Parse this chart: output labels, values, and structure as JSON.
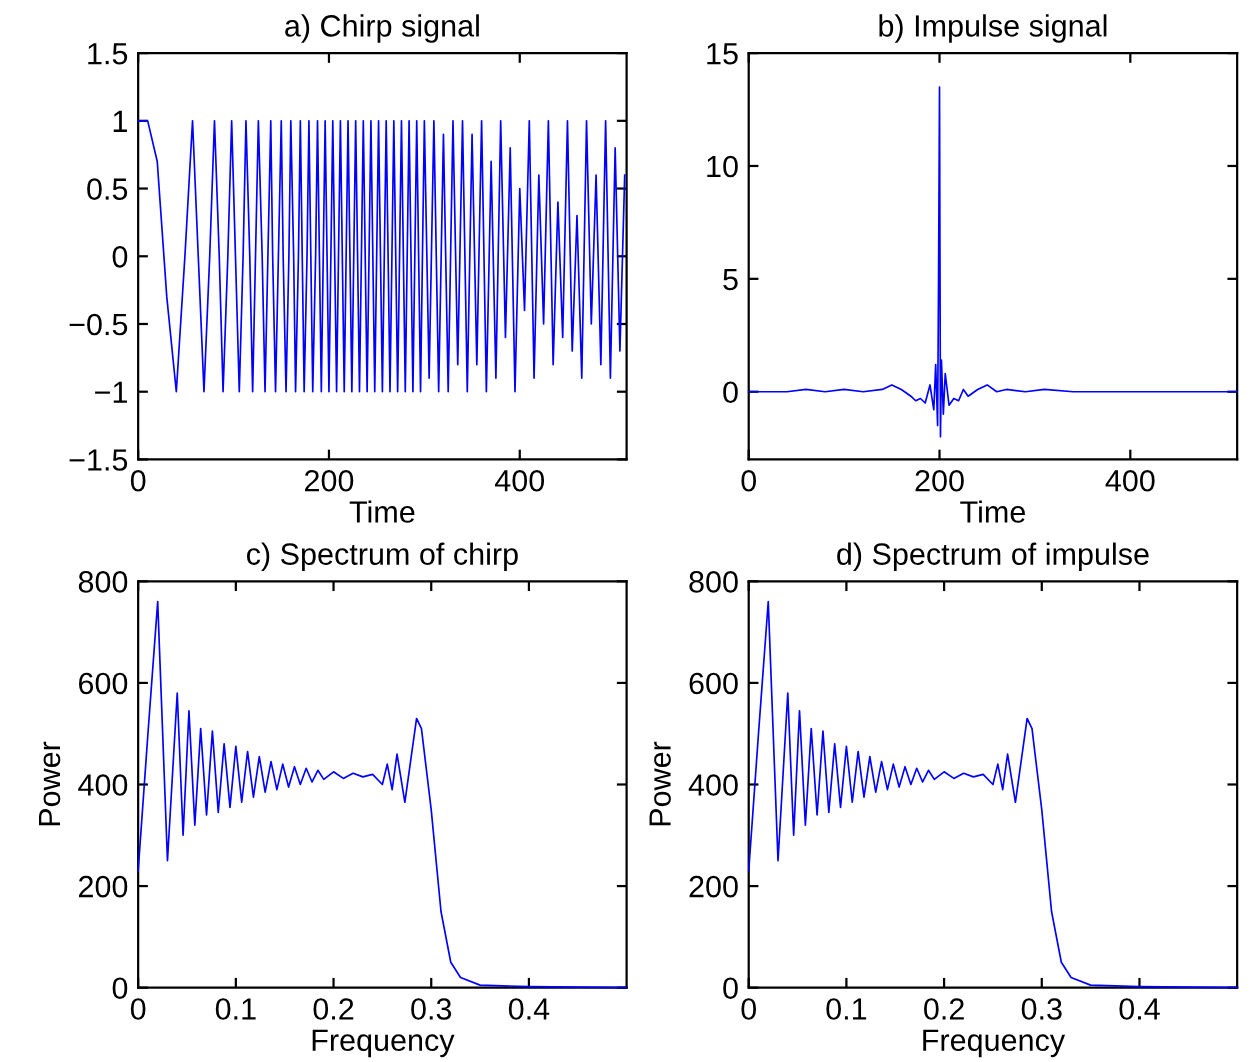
{
  "chart_data": [
    {
      "type": "line",
      "title": "a) Chirp signal",
      "xlabel": "Time",
      "xlim": [
        0,
        512
      ],
      "xticks": [
        0,
        200,
        400
      ],
      "ylim": [
        -1.5,
        1.5
      ],
      "yticks": [
        {
          "value": -1.5,
          "label": "−1.5"
        },
        {
          "value": -1,
          "label": "−1"
        },
        {
          "value": -0.5,
          "label": "−0.5"
        },
        0,
        0.5,
        1,
        1.5
      ],
      "grid": false,
      "line_style": "solid",
      "series": [
        {
          "color": "#0000ff",
          "x": [
            0,
            10,
            20,
            30,
            40,
            49,
            57,
            63,
            69,
            75,
            80,
            85,
            89,
            94,
            98,
            102,
            106,
            110,
            113,
            117,
            120,
            123,
            126,
            130,
            133,
            136,
            139,
            141,
            144,
            147,
            150,
            152,
            155,
            158,
            160,
            163,
            165,
            168,
            170,
            172,
            174,
            177,
            179,
            181,
            183,
            186,
            188,
            190,
            192,
            194,
            196,
            198,
            200,
            204,
            208,
            212,
            216,
            220,
            224,
            228,
            232,
            236,
            240,
            244,
            248,
            252,
            256,
            260,
            264,
            268,
            272,
            276,
            280,
            284,
            288,
            292,
            296,
            300,
            305,
            310,
            315,
            320,
            325,
            330,
            335,
            340,
            345,
            350,
            355,
            360,
            365,
            370,
            375,
            380,
            385,
            390,
            395,
            400,
            405,
            410,
            415,
            420,
            425,
            430,
            435,
            440,
            445,
            450,
            455,
            460,
            465,
            470,
            475,
            480,
            485,
            490,
            495,
            500,
            505,
            510
          ],
          "values": [
            1,
            1,
            0.7,
            -0.3,
            -1,
            0,
            1,
            0,
            -1,
            0,
            1,
            0,
            -1,
            0,
            1,
            0,
            -1,
            0,
            1,
            0,
            -1,
            0,
            1,
            0,
            -1,
            0,
            1,
            0,
            -1,
            0,
            1,
            0,
            -1,
            0,
            1,
            0,
            -1,
            0,
            1,
            0,
            -1,
            0,
            1,
            0,
            -1,
            0,
            1,
            0,
            -1,
            0,
            1,
            0,
            -1,
            1,
            -1,
            1,
            -1,
            1,
            -1,
            1,
            -1,
            1,
            -1,
            1,
            -1,
            1,
            -1,
            1,
            -1,
            1,
            -1,
            1,
            -1,
            1,
            -1,
            1,
            -1,
            1,
            -0.9,
            1,
            -1,
            0.9,
            -1,
            1,
            -0.8,
            1,
            -1,
            0.9,
            -0.8,
            1,
            -1,
            0.7,
            -0.9,
            1,
            -0.6,
            0.8,
            -1,
            0.5,
            -0.4,
            1,
            -0.9,
            0.6,
            -0.5,
            1,
            -0.8,
            0.4,
            -0.6,
            1,
            -0.7,
            0.3,
            -0.9,
            1,
            -0.5,
            0.6,
            -0.8,
            1,
            -0.9,
            0.8,
            -0.7,
            0.6
          ]
        }
      ]
    },
    {
      "type": "line",
      "title": "b) Impulse signal",
      "xlabel": "Time",
      "xlim": [
        0,
        512
      ],
      "xticks": [
        0,
        200,
        400
      ],
      "ylim": [
        -3,
        15
      ],
      "yticks": [
        0,
        5,
        10,
        15
      ],
      "grid": false,
      "line_style": "solid",
      "series": [
        {
          "color": "#0000ff",
          "x": [
            0,
            20,
            40,
            60,
            80,
            100,
            120,
            140,
            150,
            160,
            170,
            175,
            180,
            185,
            190,
            194,
            196,
            198,
            199,
            200,
            201,
            202,
            204,
            206,
            210,
            215,
            220,
            225,
            230,
            240,
            250,
            260,
            270,
            290,
            310,
            340,
            380,
            420,
            460,
            500,
            512
          ],
          "values": [
            0,
            0,
            0,
            0.1,
            0,
            0.1,
            0,
            0.1,
            0.3,
            0.1,
            -0.2,
            -0.4,
            -0.3,
            -0.5,
            0.3,
            -0.8,
            1.2,
            -1.5,
            5,
            13.5,
            -2,
            1.4,
            -1,
            0.8,
            -0.6,
            -0.3,
            -0.4,
            0.1,
            -0.2,
            0.1,
            0.3,
            0,
            0.1,
            0,
            0.1,
            0,
            0,
            0,
            0,
            0,
            0
          ]
        }
      ]
    },
    {
      "type": "line",
      "title": "c) Spectrum of chirp",
      "xlabel": "Frequency",
      "ylabel": "Power",
      "xlim": [
        0,
        0.5
      ],
      "xticks": [
        0,
        0.1,
        0.2,
        0.3,
        0.4
      ],
      "ylim": [
        0,
        800
      ],
      "yticks": [
        0,
        200,
        400,
        600,
        800
      ],
      "grid": false,
      "line_style": "solid",
      "series": [
        {
          "color": "#0000ff",
          "x": [
            0,
            0.01,
            0.02,
            0.03,
            0.04,
            0.046,
            0.052,
            0.058,
            0.064,
            0.07,
            0.076,
            0.082,
            0.088,
            0.094,
            0.1,
            0.106,
            0.112,
            0.118,
            0.124,
            0.13,
            0.136,
            0.142,
            0.148,
            0.154,
            0.16,
            0.166,
            0.172,
            0.178,
            0.184,
            0.19,
            0.2,
            0.21,
            0.22,
            0.23,
            0.24,
            0.25,
            0.255,
            0.26,
            0.265,
            0.273,
            0.285,
            0.29,
            0.3,
            0.31,
            0.32,
            0.33,
            0.35,
            0.4,
            0.5
          ],
          "values": [
            230,
            500,
            760,
            250,
            580,
            300,
            545,
            320,
            510,
            340,
            505,
            345,
            480,
            355,
            475,
            365,
            465,
            375,
            455,
            385,
            445,
            390,
            440,
            395,
            435,
            400,
            432,
            405,
            428,
            410,
            425,
            412,
            422,
            415,
            420,
            400,
            440,
            390,
            460,
            365,
            530,
            510,
            350,
            150,
            50,
            20,
            5,
            2,
            0
          ]
        }
      ]
    },
    {
      "type": "line",
      "title": "d) Spectrum of impulse",
      "xlabel": "Frequency",
      "ylabel": "Power",
      "xlim": [
        0,
        0.5
      ],
      "xticks": [
        0,
        0.1,
        0.2,
        0.3,
        0.4
      ],
      "ylim": [
        0,
        800
      ],
      "yticks": [
        0,
        200,
        400,
        600,
        800
      ],
      "grid": false,
      "line_style": "solid",
      "series": [
        {
          "color": "#0000ff",
          "x": [
            0,
            0.01,
            0.02,
            0.03,
            0.04,
            0.046,
            0.052,
            0.058,
            0.064,
            0.07,
            0.076,
            0.082,
            0.088,
            0.094,
            0.1,
            0.106,
            0.112,
            0.118,
            0.124,
            0.13,
            0.136,
            0.142,
            0.148,
            0.154,
            0.16,
            0.166,
            0.172,
            0.178,
            0.184,
            0.19,
            0.2,
            0.21,
            0.22,
            0.23,
            0.24,
            0.25,
            0.255,
            0.26,
            0.265,
            0.273,
            0.285,
            0.29,
            0.3,
            0.31,
            0.32,
            0.33,
            0.35,
            0.4,
            0.5
          ],
          "values": [
            230,
            500,
            760,
            250,
            580,
            300,
            545,
            320,
            510,
            340,
            505,
            345,
            480,
            355,
            475,
            365,
            465,
            375,
            455,
            385,
            445,
            390,
            440,
            395,
            435,
            400,
            432,
            405,
            428,
            410,
            425,
            412,
            422,
            415,
            420,
            400,
            440,
            390,
            460,
            365,
            530,
            510,
            350,
            150,
            50,
            20,
            5,
            2,
            0
          ]
        }
      ]
    }
  ]
}
